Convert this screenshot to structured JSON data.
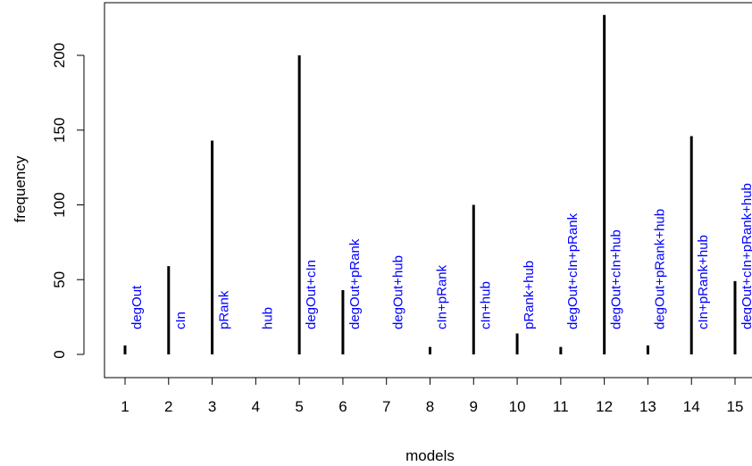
{
  "chart_data": {
    "type": "bar",
    "title": "",
    "xlabel": "models",
    "ylabel": "frequency",
    "x": [
      1,
      2,
      3,
      4,
      5,
      6,
      7,
      8,
      9,
      10,
      11,
      12,
      13,
      14,
      15
    ],
    "x_tick_labels": [
      "1",
      "2",
      "3",
      "4",
      "5",
      "6",
      "7",
      "8",
      "9",
      "10",
      "11",
      "12",
      "13",
      "14",
      "15"
    ],
    "values": [
      6,
      59,
      143,
      0,
      200,
      43,
      0,
      5,
      100,
      14,
      5,
      227,
      6,
      146,
      49
    ],
    "bar_labels": [
      "degOut",
      "cIn",
      "pRank",
      "hub",
      "degOut+cIn",
      "degOut+pRank",
      "degOut+hub",
      "cIn+pRank",
      "cIn+hub",
      "pRank+hub",
      "degOut+cIn+pRank",
      "degOut+cIn+hub",
      "degOut+pRank+hub",
      "cIn+pRank+hub",
      "degOut+cIn+pRank+hub"
    ],
    "y_ticks": [
      0,
      50,
      100,
      150,
      200
    ],
    "y_tick_labels": [
      "0",
      "50",
      "100",
      "150",
      "200"
    ],
    "ylim": [
      0,
      235
    ],
    "xlim": [
      0.3,
      15.7
    ],
    "grid": false,
    "legend": "none",
    "bar_color": "#000000",
    "label_color": "#0000ff"
  }
}
